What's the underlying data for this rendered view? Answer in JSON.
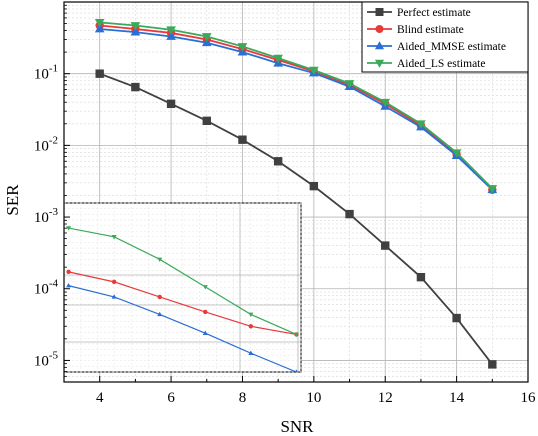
{
  "chart_data": [
    {
      "type": "line",
      "xlabel": "SNR",
      "ylabel": "SER",
      "x_scale": "linear",
      "y_scale": "log",
      "xlim": [
        3,
        16
      ],
      "ylim": [
        5e-06,
        1
      ],
      "x_ticks": [
        {
          "value": 4,
          "label": "4"
        },
        {
          "value": 6,
          "label": "6"
        },
        {
          "value": 8,
          "label": "8"
        },
        {
          "value": 10,
          "label": "10"
        },
        {
          "value": 12,
          "label": "12"
        },
        {
          "value": 14,
          "label": "14"
        },
        {
          "value": 16,
          "label": "16"
        }
      ],
      "y_ticks": [
        {
          "value": 0.1,
          "base": "10",
          "exp": "-1"
        },
        {
          "value": 0.01,
          "base": "10",
          "exp": "-2"
        },
        {
          "value": 0.001,
          "base": "10",
          "exp": "-3"
        },
        {
          "value": 0.0001,
          "base": "10",
          "exp": "-4"
        },
        {
          "value": 1e-05,
          "base": "10",
          "exp": "-5"
        }
      ],
      "grid": true,
      "legend_position": "top-right",
      "x": [
        4,
        5,
        6,
        7,
        8,
        9,
        10,
        11,
        12,
        13,
        14,
        15
      ],
      "series": [
        {
          "name": "Perfect estimate",
          "color": "#404040",
          "marker": "square",
          "values": [
            0.1,
            0.065,
            0.038,
            0.022,
            0.012,
            0.006,
            0.0027,
            0.0011,
            0.0004,
            0.000145,
            3.9e-05,
            8.8e-06
          ]
        },
        {
          "name": "Blind estimate",
          "color": "#e8393b",
          "marker": "circle",
          "values": [
            0.47,
            0.42,
            0.37,
            0.3,
            0.22,
            0.155,
            0.108,
            0.07,
            0.038,
            0.019,
            0.0075,
            0.0024
          ]
        },
        {
          "name": "Aided_MMSE estimate",
          "color": "#2b6fd6",
          "marker": "triangle-up",
          "values": [
            0.42,
            0.38,
            0.33,
            0.27,
            0.2,
            0.14,
            0.102,
            0.066,
            0.035,
            0.018,
            0.0072,
            0.0024
          ]
        },
        {
          "name": "Aided_LS estimate",
          "color": "#3aaa5a",
          "marker": "triangle-down",
          "values": [
            0.52,
            0.47,
            0.41,
            0.33,
            0.24,
            0.165,
            0.112,
            0.073,
            0.04,
            0.02,
            0.0079,
            0.0025
          ]
        }
      ]
    },
    {
      "type": "line",
      "role": "inset",
      "xlabel": "",
      "ylabel": "",
      "grid": true,
      "x": [
        0,
        1,
        2,
        3,
        4,
        5
      ],
      "series": [
        {
          "name": "Blind estimate",
          "color": "#e8393b",
          "marker": "small-circle",
          "values": [
            0.5,
            0.42,
            0.3,
            0.18,
            0.065,
            0.0
          ]
        },
        {
          "name": "Aided_MMSE estimate",
          "color": "#2b6fd6",
          "marker": "small-triangle-up",
          "values": [
            0.39,
            0.3,
            0.16,
            0.01,
            -0.15,
            -0.3
          ]
        },
        {
          "name": "Aided_LS estimate",
          "color": "#3aaa5a",
          "marker": "small-triangle-down",
          "values": [
            0.85,
            0.78,
            0.6,
            0.38,
            0.16,
            0.0
          ]
        }
      ]
    }
  ]
}
